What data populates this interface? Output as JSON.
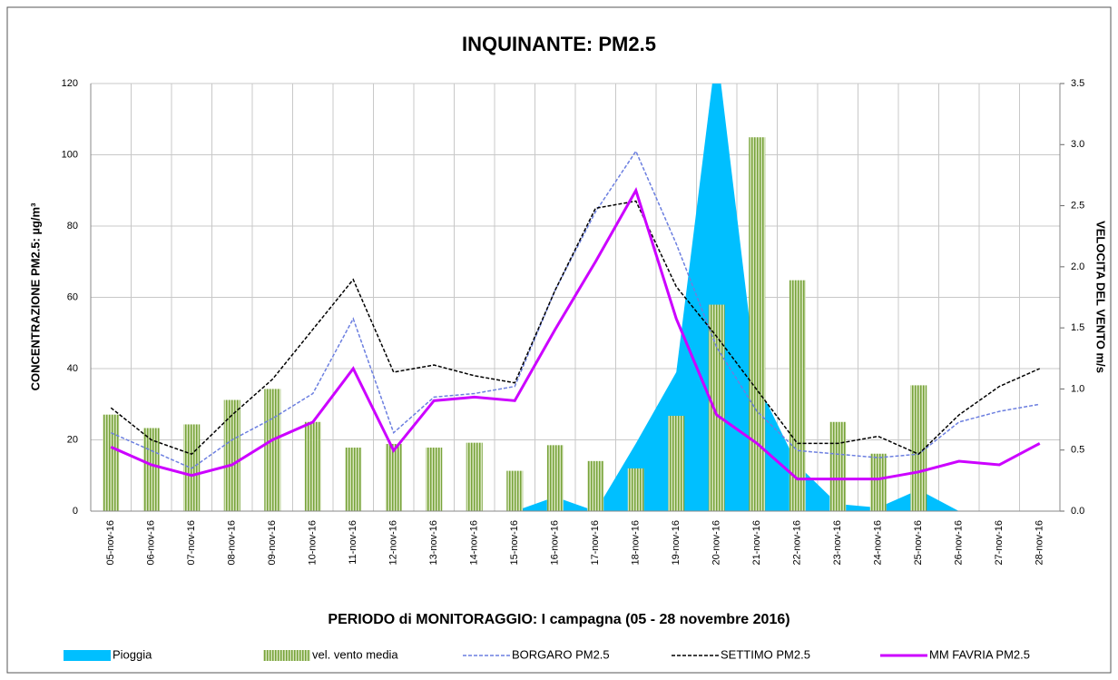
{
  "chart_data": {
    "type": "combo",
    "title": "INQUINANTE: PM2.5",
    "x_label": "PERIODO di MONITORAGGIO: I campagna (05 - 28 novembre 2016)",
    "y_label": "CONCENTRAZIONE PM2.5: µg/m³",
    "y2_label": "VELOCITA DEL VENTO m/s",
    "categories": [
      "05-nov-16",
      "06-nov-16",
      "07-nov-16",
      "08-nov-16",
      "09-nov-16",
      "10-nov-16",
      "11-nov-16",
      "12-nov-16",
      "13-nov-16",
      "14-nov-16",
      "15-nov-16",
      "16-nov-16",
      "17-nov-16",
      "18-nov-16",
      "19-nov-16",
      "20-nov-16",
      "21-nov-16",
      "22-nov-16",
      "23-nov-16",
      "24-nov-16",
      "25-nov-16",
      "26-nov-16",
      "27-nov-16",
      "28-nov-16"
    ],
    "ylim": [
      0,
      120
    ],
    "yticks": [
      0,
      20,
      40,
      60,
      80,
      100,
      120
    ],
    "y2lim": [
      0,
      3.5
    ],
    "y2ticks": [
      {
        "value": 0,
        "label": "0.0"
      },
      {
        "value": 0.5,
        "label": "0.5"
      },
      {
        "value": 1,
        "label": "1.0"
      },
      {
        "value": 1.5,
        "label": "1.5"
      },
      {
        "value": 2,
        "label": "2.0"
      },
      {
        "value": 2.5,
        "label": "2.5"
      },
      {
        "value": 3,
        "label": "3.0"
      },
      {
        "value": 3.5,
        "label": "3.5"
      }
    ],
    "grid": true,
    "legend": "bottom",
    "series": [
      {
        "name": "Pioggia",
        "type": "area",
        "axis": "y",
        "color": "#00bfff",
        "values": [
          0,
          0,
          0,
          0,
          0,
          0,
          0,
          0,
          0,
          0,
          0,
          4,
          0,
          19,
          39,
          130,
          36,
          13,
          2,
          1,
          6,
          0,
          null,
          null
        ]
      },
      {
        "name": "vel. vento media",
        "type": "bar",
        "axis": "y2",
        "color": "#9bbb59",
        "values": [
          0.79,
          0.68,
          0.71,
          0.91,
          1.0,
          0.73,
          0.52,
          0.55,
          0.52,
          0.56,
          0.33,
          0.54,
          0.41,
          0.35,
          0.78,
          1.69,
          3.06,
          1.89,
          0.73,
          0.47,
          1.03,
          null,
          null,
          null
        ]
      },
      {
        "name": "BORGARO PM2.5",
        "type": "line",
        "axis": "y",
        "color": "#6c7fe0",
        "line_style": "dashed",
        "values": [
          22,
          17,
          12,
          20,
          26,
          33,
          54,
          22,
          32,
          33,
          35,
          62,
          84,
          101,
          75,
          46,
          28,
          17,
          16,
          15,
          16,
          25,
          28,
          30
        ]
      },
      {
        "name": "SETTIMO PM2.5",
        "type": "line",
        "axis": "y",
        "color": "#000000",
        "line_style": "dashed",
        "values": [
          29,
          20,
          16,
          27,
          37,
          51,
          65,
          39,
          41,
          38,
          36,
          62,
          85,
          87,
          63,
          49,
          34,
          19,
          19,
          21,
          16,
          27,
          35,
          40
        ]
      },
      {
        "name": "MM FAVRIA PM2.5",
        "type": "line",
        "axis": "y",
        "color": "#cc00ff",
        "line_style": "solid",
        "values": [
          18,
          13,
          10,
          13,
          20,
          25,
          40,
          17,
          31,
          32,
          31,
          51,
          70,
          90,
          54,
          27,
          19,
          9,
          9,
          9,
          11,
          14,
          13,
          19
        ]
      }
    ]
  }
}
